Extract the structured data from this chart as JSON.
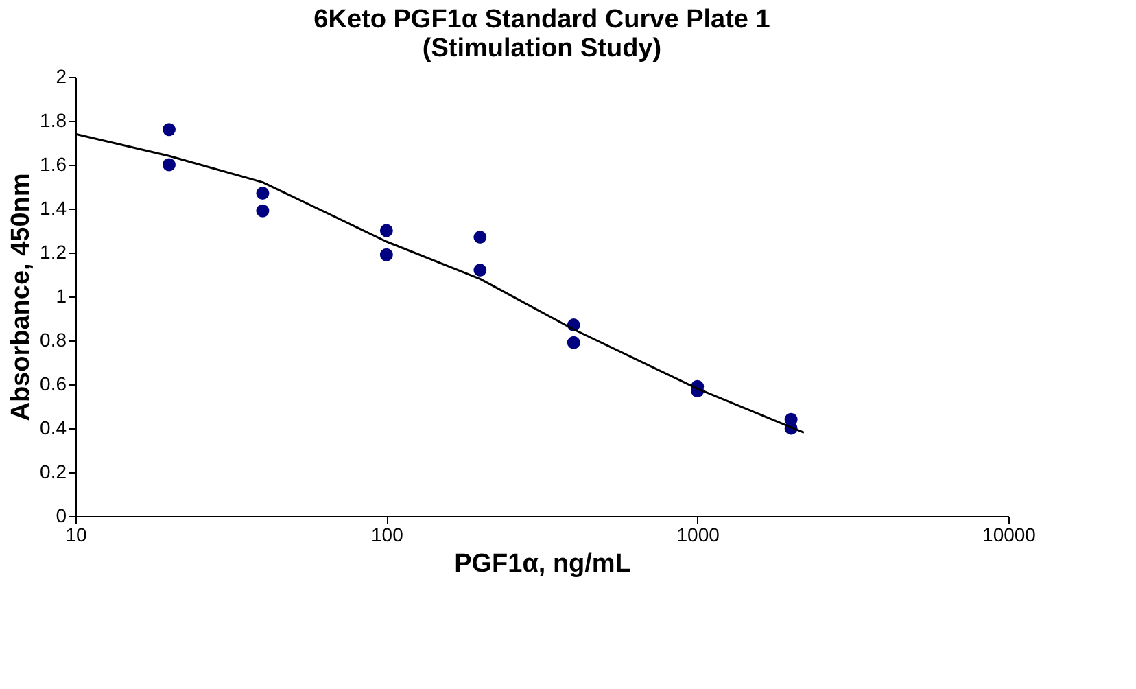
{
  "chart_data": {
    "type": "scatter",
    "title": "6Keto PGF1α Standard Curve Plate 1",
    "subtitle": "(Stimulation Study)",
    "xlabel": "PGF1α, ng/mL",
    "ylabel": "Absorbance, 450nm",
    "log": "x",
    "xlim": [
      10,
      10000
    ],
    "xticks": [
      10,
      100,
      1000,
      10000
    ],
    "ylim": [
      0,
      2
    ],
    "yticks": [
      0,
      0.2,
      0.4,
      0.6,
      0.8,
      1,
      1.2,
      1.4,
      1.6,
      1.8,
      2
    ],
    "grid": false,
    "series": [
      {
        "type": "scatter",
        "marker": "circle",
        "color": "#000080",
        "x": [
          20,
          20,
          40,
          40,
          100,
          100,
          200,
          200,
          400,
          400,
          1000,
          1000,
          2000,
          2000
        ],
        "values": [
          1.76,
          1.6,
          1.47,
          1.39,
          1.3,
          1.19,
          1.27,
          1.12,
          0.87,
          0.79,
          0.59,
          0.57,
          0.44,
          0.4
        ]
      },
      {
        "type": "line",
        "marker": "none",
        "line_style": "solid",
        "color": "#000000",
        "x": [
          10,
          20,
          40,
          100,
          200,
          400,
          1000,
          2200
        ],
        "values": [
          1.74,
          1.64,
          1.52,
          1.25,
          1.08,
          0.85,
          0.58,
          0.38
        ]
      }
    ]
  }
}
